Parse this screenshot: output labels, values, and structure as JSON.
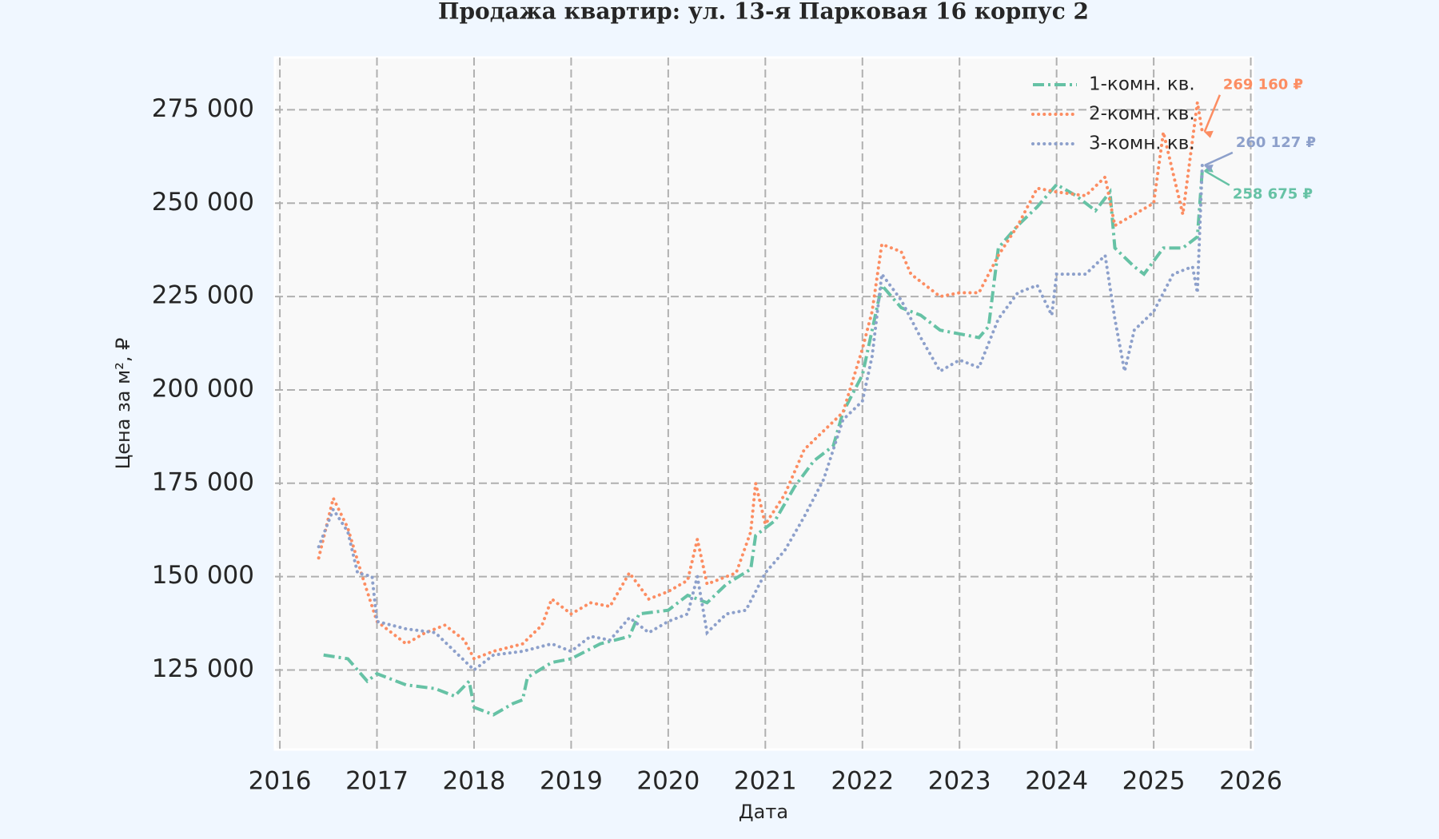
{
  "chart_data": {
    "type": "line",
    "title": "Продажа квартир: ул. 13-я Парковая 16 корпус 2",
    "xlabel": "Дата",
    "ylabel": "Цена за м², ₽",
    "xlim": [
      2015.95,
      2026.02
    ],
    "xticks": [
      2016,
      2017,
      2018,
      2019,
      2020,
      2021,
      2022,
      2023,
      2024,
      2025,
      2026
    ],
    "ylim": [
      103700,
      289000
    ],
    "yticks": [
      {
        "value": 125000,
        "label": "125 000"
      },
      {
        "value": 150000,
        "label": "150 000"
      },
      {
        "value": 175000,
        "label": "175 000"
      },
      {
        "value": 200000,
        "label": "200 000"
      },
      {
        "value": 225000,
        "label": "225 000"
      },
      {
        "value": 250000,
        "label": "250 000"
      },
      {
        "value": 275000,
        "label": "275 000"
      }
    ],
    "grid": true,
    "legend": "upper right",
    "series": [
      {
        "name": "1-комн. кв.",
        "color": "#66c2a5",
        "style": "dashdot",
        "annotation": "258 675 ₽",
        "x": [
          2016.45,
          2016.7,
          2016.9,
          2017.0,
          2017.3,
          2017.6,
          2017.8,
          2017.95,
          2018.0,
          2018.2,
          2018.4,
          2018.5,
          2018.55,
          2018.8,
          2019.0,
          2019.3,
          2019.6,
          2019.7,
          2020.0,
          2020.2,
          2020.4,
          2020.6,
          2020.85,
          2020.9,
          2021.1,
          2021.3,
          2021.5,
          2021.7,
          2021.8,
          2022.0,
          2022.1,
          2022.2,
          2022.4,
          2022.6,
          2022.8,
          2023.0,
          2023.2,
          2023.3,
          2023.4,
          2023.6,
          2023.8,
          2024.0,
          2024.2,
          2024.4,
          2024.55,
          2024.6,
          2024.8,
          2024.9,
          2025.1,
          2025.3,
          2025.45,
          2025.5
        ],
        "values": [
          129000,
          128000,
          122000,
          124000,
          121000,
          120000,
          118000,
          122000,
          115000,
          113000,
          116000,
          117000,
          123000,
          127000,
          128000,
          132000,
          134000,
          140000,
          141000,
          145000,
          143000,
          148000,
          152000,
          161000,
          165000,
          174000,
          181000,
          185000,
          194000,
          204000,
          216000,
          228000,
          222000,
          220000,
          216000,
          215000,
          214000,
          217000,
          238000,
          244000,
          249000,
          255000,
          252000,
          248000,
          253000,
          238000,
          233000,
          231000,
          238000,
          238000,
          241000,
          258675
        ]
      },
      {
        "name": "2-комн. кв.",
        "color": "#fc8d62",
        "style": "dotted",
        "annotation": "269 160 ₽",
        "x": [
          2016.4,
          2016.55,
          2016.7,
          2016.85,
          2017.0,
          2017.3,
          2017.5,
          2017.7,
          2017.9,
          2018.0,
          2018.2,
          2018.5,
          2018.7,
          2018.8,
          2019.0,
          2019.2,
          2019.4,
          2019.6,
          2019.8,
          2020.0,
          2020.2,
          2020.3,
          2020.4,
          2020.7,
          2020.85,
          2020.9,
          2021.0,
          2021.2,
          2021.4,
          2021.6,
          2021.8,
          2022.0,
          2022.1,
          2022.2,
          2022.4,
          2022.5,
          2022.8,
          2023.0,
          2023.2,
          2023.4,
          2023.6,
          2023.8,
          2024.0,
          2024.3,
          2024.5,
          2024.6,
          2024.8,
          2025.0,
          2025.1,
          2025.3,
          2025.45,
          2025.5
        ],
        "values": [
          155000,
          171000,
          163000,
          150000,
          138000,
          132000,
          135000,
          137000,
          133000,
          128000,
          130000,
          132000,
          137000,
          144000,
          140000,
          143000,
          142000,
          151000,
          144000,
          146000,
          149000,
          160000,
          148000,
          151000,
          162000,
          175000,
          164000,
          172000,
          184000,
          189000,
          194000,
          211000,
          221000,
          239000,
          237000,
          231000,
          225000,
          226000,
          226000,
          236000,
          244000,
          254000,
          253000,
          252000,
          257000,
          244000,
          247000,
          250000,
          269000,
          247000,
          277000,
          269160
        ]
      },
      {
        "name": "3-комн. кв.",
        "color": "#8da0cb",
        "style": "dotted",
        "annotation": "260 127 ₽",
        "x": [
          2016.4,
          2016.55,
          2016.7,
          2016.8,
          2016.95,
          2017.0,
          2017.3,
          2017.6,
          2017.8,
          2018.0,
          2018.2,
          2018.5,
          2018.8,
          2019.0,
          2019.2,
          2019.4,
          2019.6,
          2019.8,
          2020.0,
          2020.2,
          2020.3,
          2020.4,
          2020.6,
          2020.8,
          2021.0,
          2021.2,
          2021.4,
          2021.6,
          2021.8,
          2022.0,
          2022.1,
          2022.2,
          2022.4,
          2022.6,
          2022.8,
          2023.0,
          2023.2,
          2023.4,
          2023.6,
          2023.8,
          2023.95,
          2024.0,
          2024.3,
          2024.5,
          2024.6,
          2024.7,
          2024.8,
          2025.0,
          2025.2,
          2025.4,
          2025.45,
          2025.5
        ],
        "values": [
          158000,
          168000,
          162000,
          151000,
          150000,
          138000,
          136000,
          135000,
          130000,
          125000,
          129000,
          130000,
          132000,
          130000,
          134000,
          133000,
          139000,
          135000,
          138000,
          140000,
          150000,
          135000,
          140000,
          141000,
          151000,
          157000,
          166000,
          176000,
          192000,
          197000,
          209000,
          231000,
          224000,
          214000,
          205000,
          208000,
          206000,
          219000,
          226000,
          228000,
          220000,
          231000,
          231000,
          236000,
          219000,
          205000,
          216000,
          221000,
          231000,
          233000,
          226000,
          260127
        ]
      }
    ]
  }
}
